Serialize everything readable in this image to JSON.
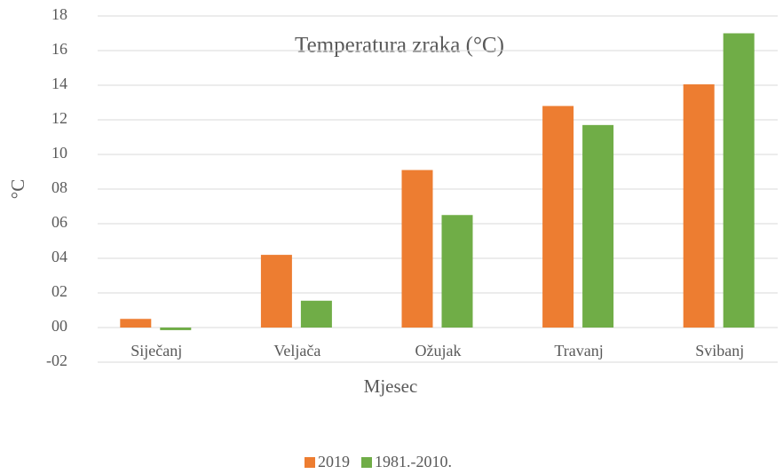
{
  "chart_data": {
    "type": "bar",
    "title": "Temperatura zraka (°C)",
    "x_label": "Mjesec",
    "y_label": "°C",
    "categories": [
      "Siječanj",
      "Veljača",
      "Ožujak",
      "Travanj",
      "Svibanj"
    ],
    "series": [
      {
        "name": "2019",
        "color": "#ed7d31",
        "values": [
          0.5,
          4.2,
          9.1,
          12.8,
          14.05
        ]
      },
      {
        "name": "1981.-2010.",
        "color": "#70ad47",
        "values": [
          -0.15,
          1.55,
          6.5,
          11.7,
          17.0
        ]
      }
    ],
    "ylim": [
      -2,
      18
    ],
    "yticks": [
      {
        "value": -2,
        "label": "-02"
      },
      {
        "value": 0,
        "label": "00"
      },
      {
        "value": 2,
        "label": "02"
      },
      {
        "value": 4,
        "label": "04"
      },
      {
        "value": 6,
        "label": "06"
      },
      {
        "value": 8,
        "label": "08"
      },
      10,
      12,
      14,
      16,
      18
    ],
    "grid": true,
    "legend": "bottom"
  }
}
